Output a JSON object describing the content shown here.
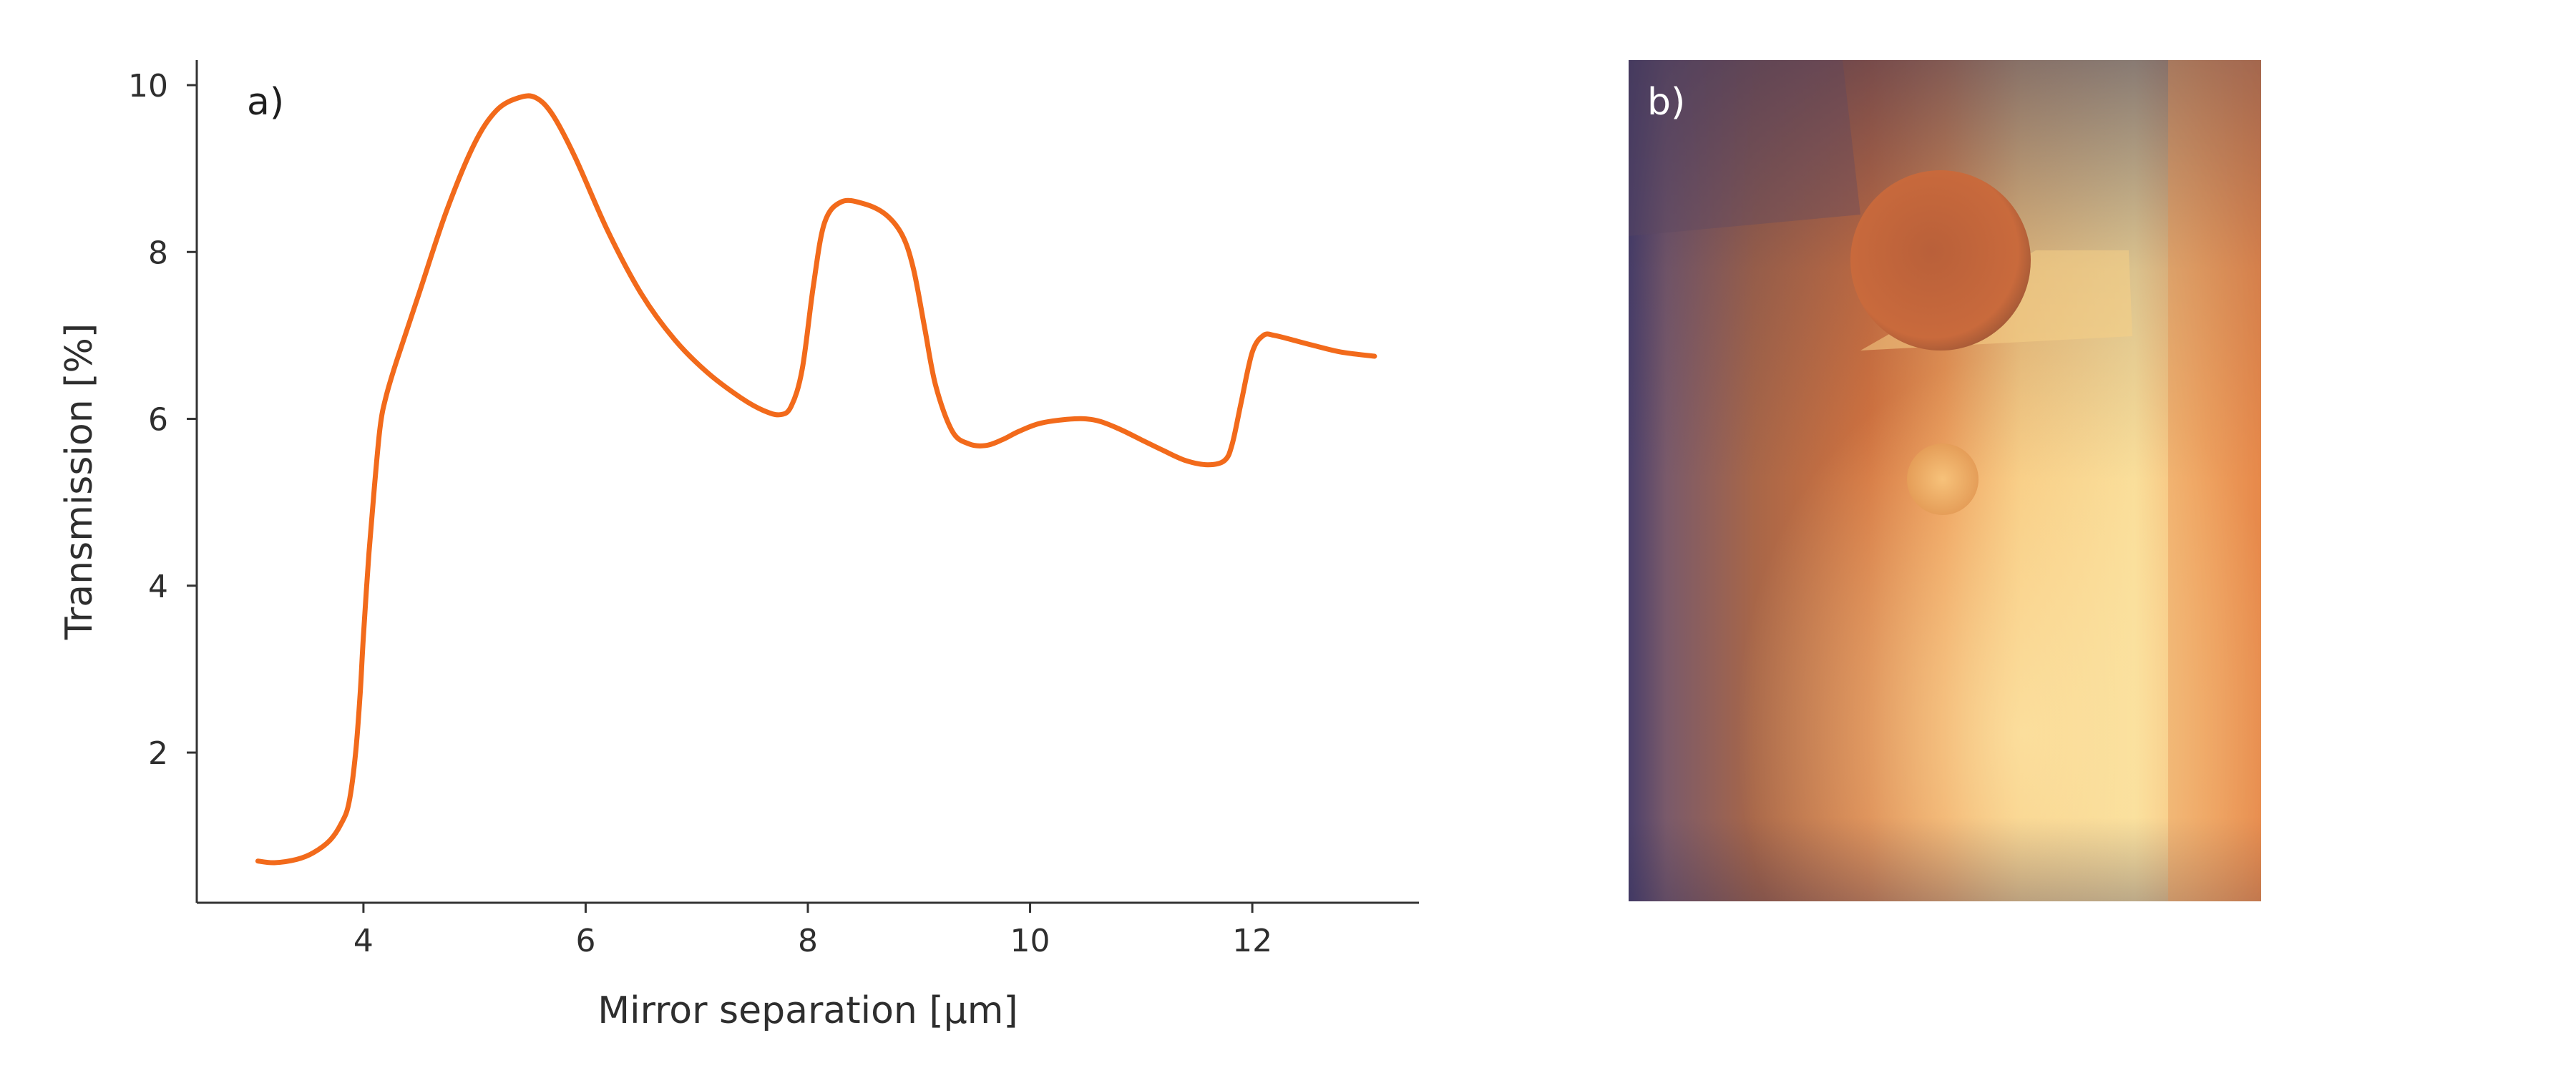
{
  "chart_data": [
    {
      "type": "line",
      "panel_label": "a)",
      "xlabel": "Mirror separation [µm]",
      "ylabel": "Transmission [%]",
      "xlim": [
        2.5,
        13.5
      ],
      "ylim": [
        0.2,
        10.3
      ],
      "xticks": [
        4,
        6,
        8,
        10,
        12
      ],
      "yticks": [
        2,
        4,
        6,
        8,
        10
      ],
      "x_tick_labels": [
        "4",
        "6",
        "8",
        "10",
        "12"
      ],
      "y_tick_labels": [
        "2",
        "4",
        "6",
        "8",
        "10"
      ],
      "grid": false,
      "series": [
        {
          "color": "#f26a1b",
          "x": [
            3.05,
            3.2,
            3.4,
            3.55,
            3.7,
            3.8,
            3.87,
            3.93,
            3.97,
            4.0,
            4.05,
            4.1,
            4.15,
            4.2,
            4.3,
            4.5,
            4.75,
            5.0,
            5.2,
            5.4,
            5.55,
            5.7,
            5.9,
            6.2,
            6.5,
            6.8,
            7.1,
            7.4,
            7.6,
            7.75,
            7.85,
            7.95,
            8.05,
            8.15,
            8.3,
            8.5,
            8.7,
            8.85,
            8.95,
            9.05,
            9.15,
            9.3,
            9.45,
            9.6,
            9.75,
            9.9,
            10.1,
            10.4,
            10.6,
            10.8,
            11.0,
            11.2,
            11.4,
            11.6,
            11.75,
            11.82,
            11.9,
            12.0,
            12.1,
            12.2,
            12.35,
            12.55,
            12.8,
            13.1
          ],
          "y": [
            0.7,
            0.68,
            0.72,
            0.8,
            0.95,
            1.15,
            1.4,
            2.0,
            2.7,
            3.4,
            4.4,
            5.2,
            5.9,
            6.25,
            6.7,
            7.5,
            8.5,
            9.3,
            9.7,
            9.85,
            9.85,
            9.65,
            9.15,
            8.25,
            7.5,
            6.95,
            6.55,
            6.25,
            6.1,
            6.05,
            6.15,
            6.6,
            7.6,
            8.35,
            8.6,
            8.58,
            8.45,
            8.2,
            7.8,
            7.1,
            6.4,
            5.85,
            5.7,
            5.68,
            5.75,
            5.85,
            5.95,
            6.0,
            5.98,
            5.88,
            5.75,
            5.62,
            5.5,
            5.45,
            5.5,
            5.7,
            6.2,
            6.8,
            7.0,
            7.0,
            6.95,
            6.88,
            6.8,
            6.75
          ]
        }
      ]
    },
    {
      "type": "image",
      "panel_label": "b)",
      "colors": {
        "dark_edge": "#3a3560",
        "mid": "#e57a3e",
        "bright": "#f8dc96"
      }
    }
  ],
  "style": {
    "axis_color": "#333333",
    "text_color": "#2e2e2e",
    "line_color": "#f26a1b"
  }
}
